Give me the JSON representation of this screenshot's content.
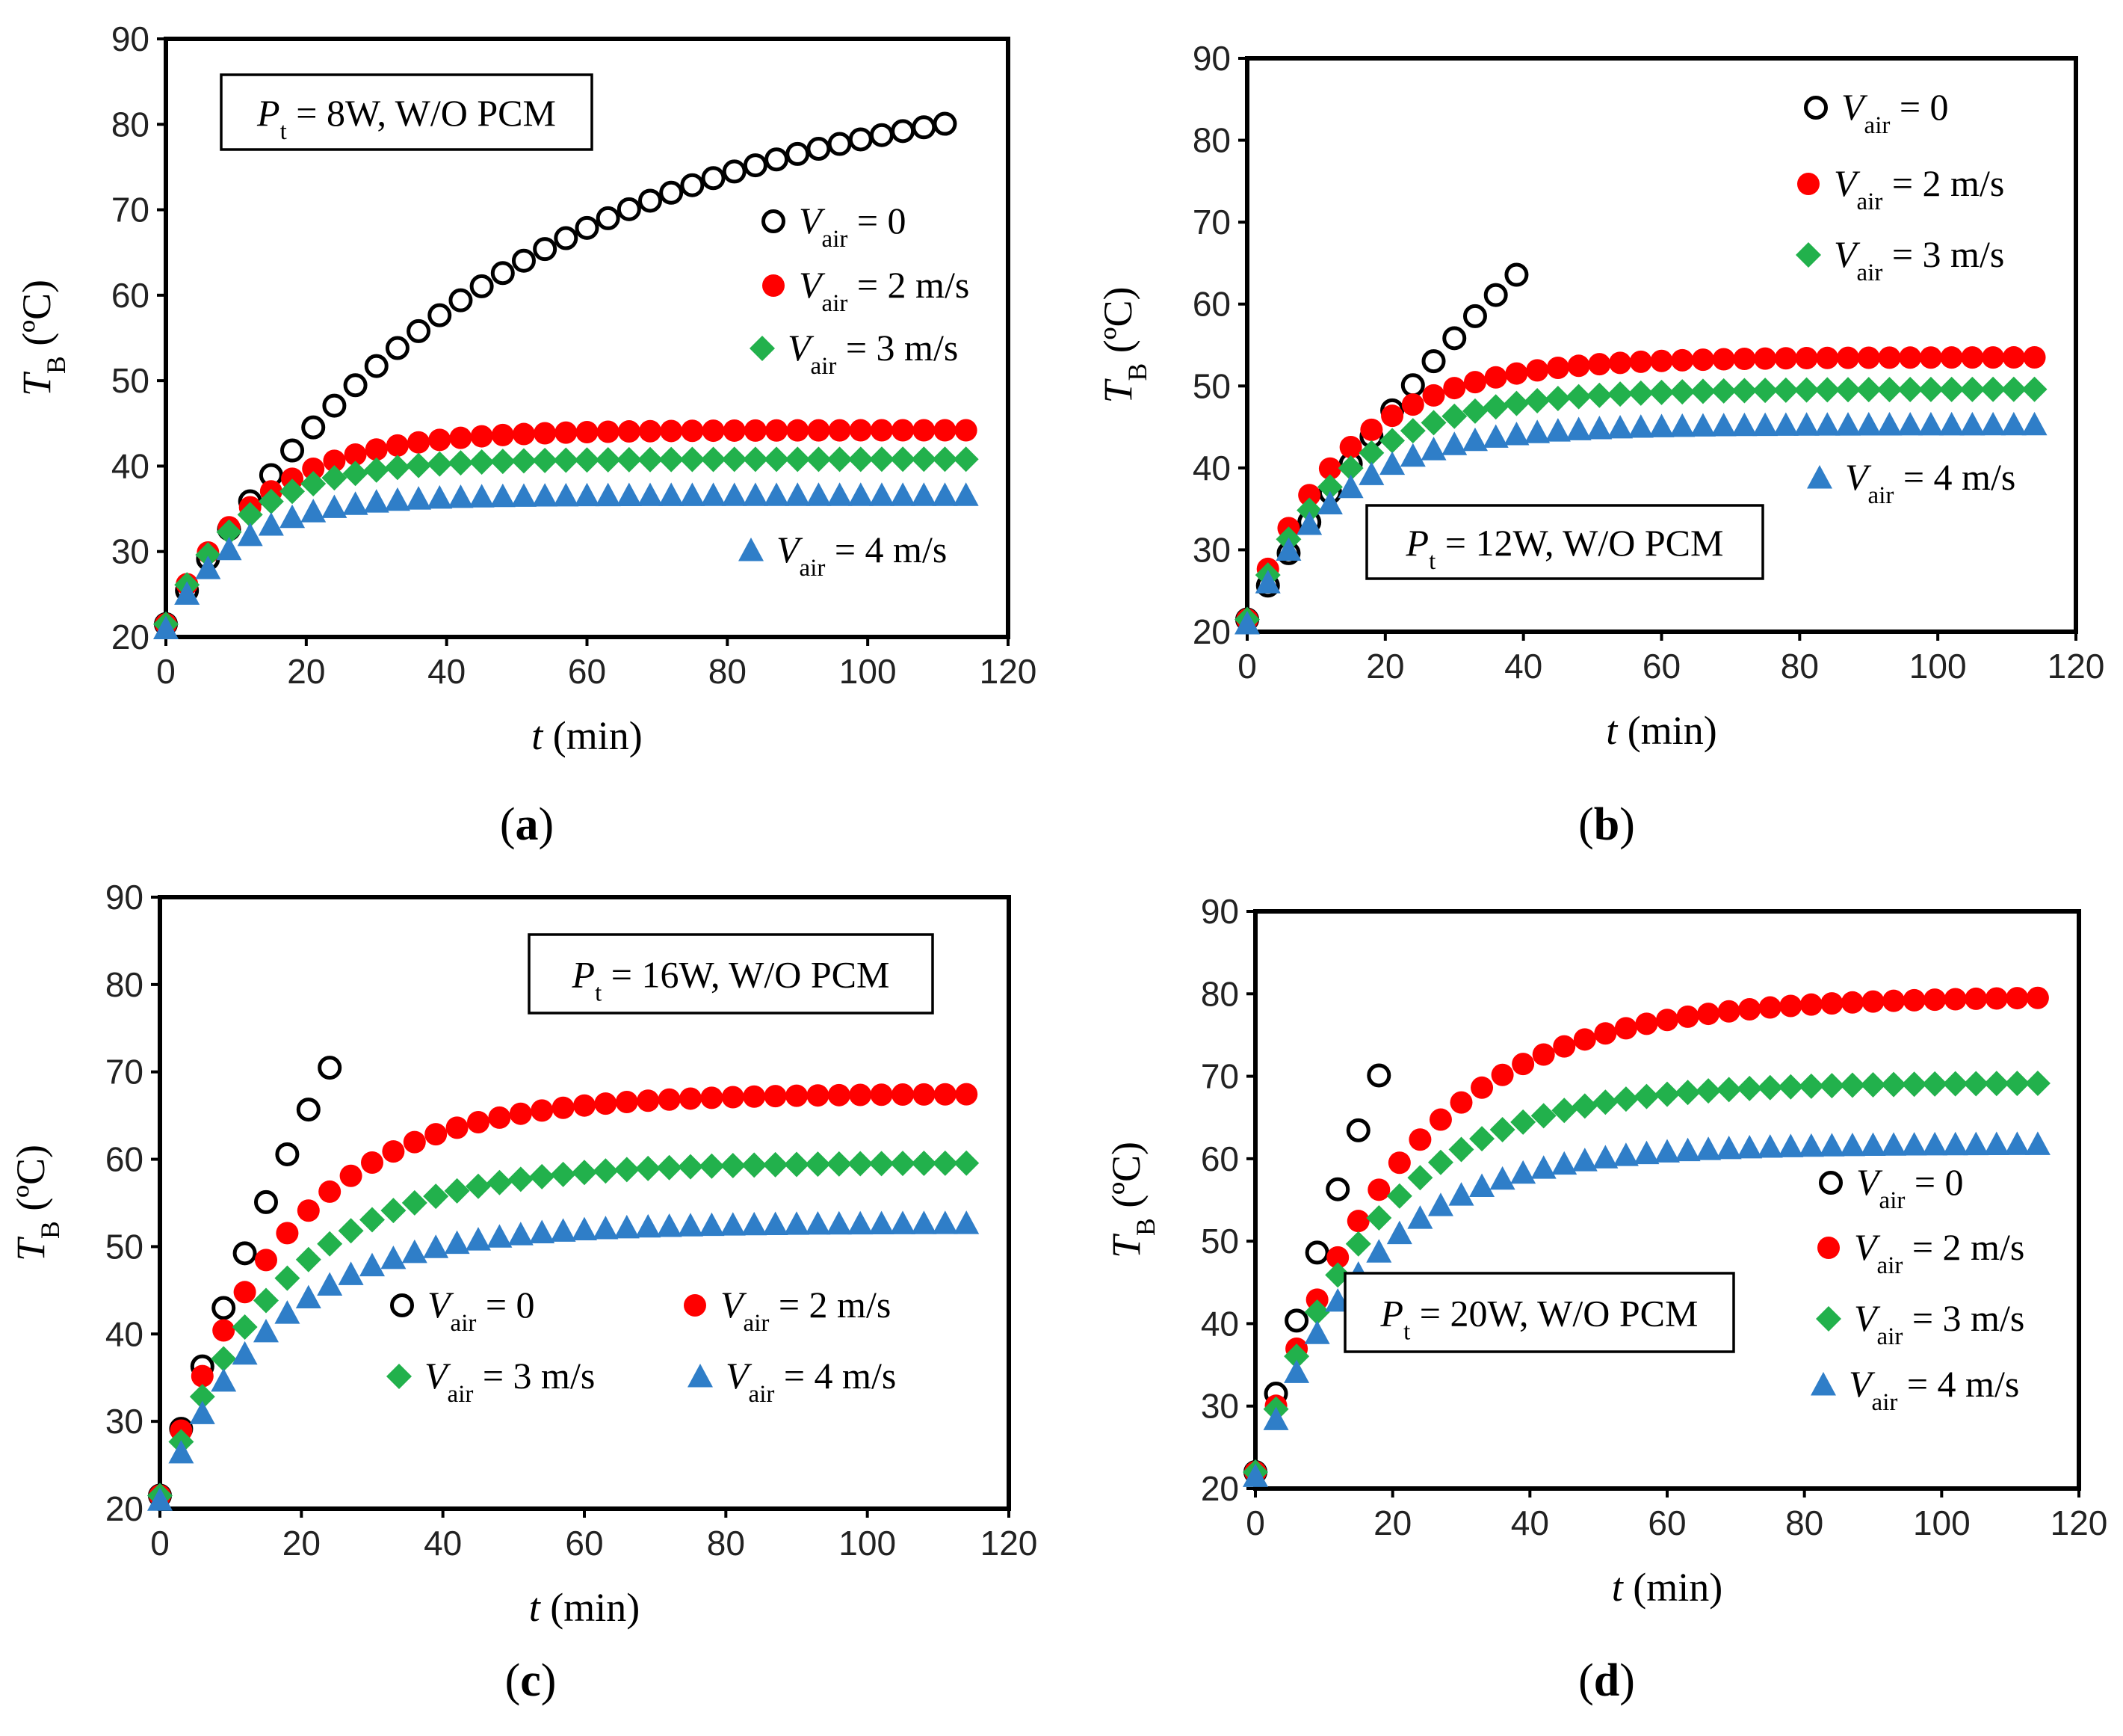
{
  "panels": [
    {
      "caption": "a",
      "xlabel": {
        "var": "t",
        "unit": "(min)"
      },
      "ylabel": {
        "var": "T",
        "sub": "B",
        "unit": "(ºC)"
      },
      "xlim": [
        0,
        120
      ],
      "ylim": [
        20,
        90
      ],
      "xticks": [
        "0",
        "20",
        "40",
        "60",
        "80",
        "100",
        "120"
      ],
      "yticks": [
        "20",
        "30",
        "40",
        "50",
        "60",
        "70",
        "80",
        "90"
      ],
      "annotation": {
        "var": "P",
        "sub": "t",
        "text": " = 8W, W/O PCM"
      }
    },
    {
      "caption": "b",
      "xlabel": {
        "var": "t",
        "unit": "(min)"
      },
      "ylabel": {
        "var": "T",
        "sub": "B",
        "unit": "(ºC)"
      },
      "xlim": [
        0,
        120
      ],
      "ylim": [
        20,
        90
      ],
      "xticks": [
        "0",
        "20",
        "40",
        "60",
        "80",
        "100",
        "120"
      ],
      "yticks": [
        "20",
        "30",
        "40",
        "50",
        "60",
        "70",
        "80",
        "90"
      ],
      "annotation": {
        "var": "P",
        "sub": "t",
        "text": " = 12W, W/O PCM"
      }
    },
    {
      "caption": "c",
      "xlabel": {
        "var": "t",
        "unit": "(min)"
      },
      "ylabel": {
        "var": "T",
        "sub": "B",
        "unit": "(ºC)"
      },
      "xlim": [
        0,
        120
      ],
      "ylim": [
        20,
        90
      ],
      "xticks": [
        "0",
        "20",
        "40",
        "60",
        "80",
        "100",
        "120"
      ],
      "yticks": [
        "20",
        "30",
        "40",
        "50",
        "60",
        "70",
        "80",
        "90"
      ],
      "annotation": {
        "var": "P",
        "sub": "t",
        "text": " = 16W, W/O PCM"
      }
    },
    {
      "caption": "d",
      "xlabel": {
        "var": "t",
        "unit": "(min)"
      },
      "ylabel": {
        "var": "T",
        "sub": "B",
        "unit": "(ºC)"
      },
      "xlim": [
        0,
        120
      ],
      "ylim": [
        20,
        90
      ],
      "xticks": [
        "0",
        "20",
        "40",
        "60",
        "80",
        "100",
        "120"
      ],
      "yticks": [
        "20",
        "30",
        "40",
        "50",
        "60",
        "70",
        "80",
        "90"
      ],
      "annotation": {
        "var": "P",
        "sub": "t",
        "text": " = 20W, W/O PCM"
      }
    }
  ],
  "legend": [
    {
      "var": "V",
      "sub": "air",
      "text": " = 0"
    },
    {
      "var": "V",
      "sub": "air",
      "text": " = 2 m/s"
    },
    {
      "var": "V",
      "sub": "air",
      "text": " = 3 m/s"
    },
    {
      "var": "V",
      "sub": "air",
      "text": " = 4 m/s"
    }
  ],
  "colors": {
    "v0": "#000000",
    "v2": "#ff0000",
    "v3": "#22b14c",
    "v4": "#2f7ec8",
    "frame": "#000000"
  },
  "chart_data": [
    {
      "type": "scatter",
      "title": "(a) Pt = 8W, W/O PCM",
      "xlabel": "t (min)",
      "ylabel": "TB (ºC)",
      "xlim": [
        0,
        120
      ],
      "ylim": [
        20,
        90
      ],
      "series": [
        {
          "name": "Vair = 0",
          "marker": "circle-open",
          "params": {
            "T0": 21.5,
            "Tinf": 86.5,
            "tau": 48,
            "tmax": 111
          }
        },
        {
          "name": "Vair = 2 m/s",
          "marker": "circle",
          "params": {
            "T0": 21.5,
            "Tinf": 44.2,
            "tau": 13,
            "tmax": 114
          }
        },
        {
          "name": "Vair = 3 m/s",
          "marker": "diamond",
          "params": {
            "T0": 21.5,
            "Tinf": 40.8,
            "tau": 11,
            "tmax": 114
          }
        },
        {
          "name": "Vair = 4 m/s",
          "marker": "triangle",
          "params": {
            "T0": 21.0,
            "Tinf": 36.6,
            "tau": 10,
            "tmax": 114
          }
        }
      ]
    },
    {
      "type": "scatter",
      "title": "(b) Pt = 12W, W/O PCM",
      "xlabel": "t (min)",
      "ylabel": "TB (ºC)",
      "xlim": [
        0,
        120
      ],
      "ylim": [
        20,
        90
      ],
      "series": [
        {
          "name": "Vair = 0",
          "marker": "circle-open",
          "params": {
            "T0": 21.5,
            "Tinf": 120,
            "tau": 70,
            "tmax": 39
          }
        },
        {
          "name": "Vair = 2 m/s",
          "marker": "circle",
          "params": {
            "T0": 21.5,
            "Tinf": 53.5,
            "tau": 14,
            "tmax": 114
          }
        },
        {
          "name": "Vair = 3 m/s",
          "marker": "diamond",
          "params": {
            "T0": 21.5,
            "Tinf": 49.6,
            "tau": 14,
            "tmax": 114
          }
        },
        {
          "name": "Vair = 4 m/s",
          "marker": "triangle",
          "params": {
            "T0": 21.0,
            "Tinf": 45.3,
            "tau": 13,
            "tmax": 114
          }
        }
      ]
    },
    {
      "type": "scatter",
      "title": "(c) Pt = 16W, W/O PCM",
      "xlabel": "t (min)",
      "ylabel": "TB (ºC)",
      "xlim": [
        0,
        120
      ],
      "ylim": [
        20,
        90
      ],
      "series": [
        {
          "name": "Vair = 0",
          "marker": "circle-open",
          "params": {
            "T0": 21.5,
            "Tinf": 140,
            "tau": 45,
            "tmax": 24
          }
        },
        {
          "name": "Vair = 2 m/s",
          "marker": "circle",
          "params": {
            "T0": 21.5,
            "Tinf": 67.5,
            "tau": 17,
            "tmax": 114
          }
        },
        {
          "name": "Vair = 3 m/s",
          "marker": "diamond",
          "params": {
            "T0": 21.5,
            "Tinf": 59.6,
            "tau": 17,
            "tmax": 114
          }
        },
        {
          "name": "Vair = 4 m/s",
          "marker": "triangle",
          "params": {
            "T0": 21.0,
            "Tinf": 52.7,
            "tau": 16,
            "tmax": 114
          }
        }
      ]
    },
    {
      "type": "scatter",
      "title": "(d) Pt = 20W, W/O PCM",
      "xlabel": "t (min)",
      "ylabel": "TB (ºC)",
      "xlim": [
        0,
        120
      ],
      "ylim": [
        20,
        90
      ],
      "series": [
        {
          "name": "Vair = 0",
          "marker": "circle-open",
          "params": {
            "T0": 22.0,
            "Tinf": 160,
            "tau": 42,
            "tmax": 18
          }
        },
        {
          "name": "Vair = 2 m/s",
          "marker": "circle",
          "params": {
            "T0": 22.0,
            "Tinf": 79.7,
            "tau": 20,
            "tmax": 114
          }
        },
        {
          "name": "Vair = 3 m/s",
          "marker": "diamond",
          "params": {
            "T0": 22.0,
            "Tinf": 69.2,
            "tau": 17,
            "tmax": 114
          }
        },
        {
          "name": "Vair = 4 m/s",
          "marker": "triangle",
          "params": {
            "T0": 21.5,
            "Tinf": 61.8,
            "tau": 16,
            "tmax": 114
          }
        }
      ]
    }
  ]
}
